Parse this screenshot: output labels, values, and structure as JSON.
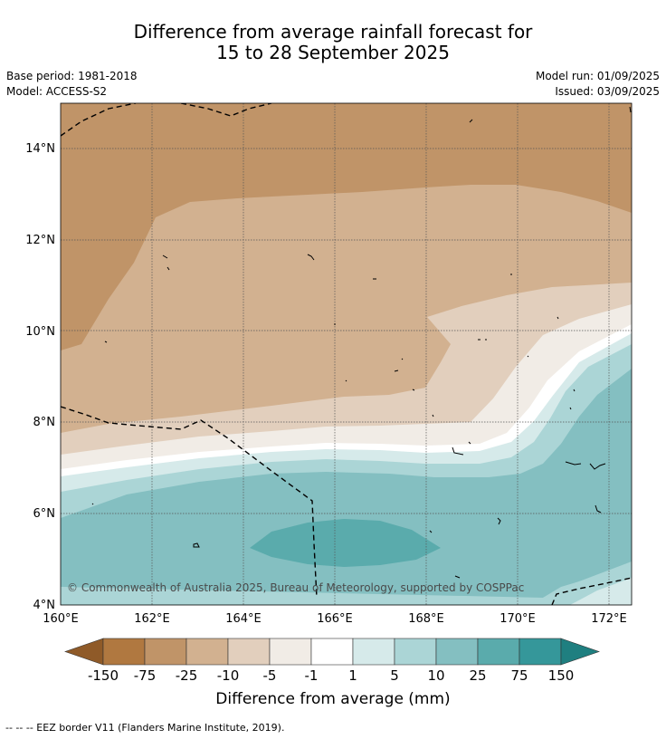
{
  "title_line1": "Difference from average rainfall forecast for",
  "title_line2": "15 to 28 September 2025",
  "base_period": "Base period: 1981-2018",
  "model": "Model: ACCESS-S2",
  "model_run": "Model run: 01/09/2025",
  "issued": "Issued: 03/09/2025",
  "copyright": "© Commonwealth of Australia 2025, Bureau of Meteorology, supported by COSPPac",
  "x_ticks": [
    "160°E",
    "162°E",
    "164°E",
    "166°E",
    "168°E",
    "170°E",
    "172°E"
  ],
  "y_ticks": [
    "4°N",
    "6°N",
    "8°N",
    "10°N",
    "12°N",
    "14°N"
  ],
  "colorbar": {
    "title": "Difference from average (mm)",
    "labels": [
      "-150",
      "-75",
      "-25",
      "-10",
      "-5",
      "-1",
      "1",
      "5",
      "10",
      "25",
      "75",
      "150"
    ],
    "colors": [
      "#8f5a28",
      "#b07840",
      "#c09468",
      "#d2b190",
      "#e2cfbd",
      "#f1ece6",
      "#ffffff",
      "#d6eaea",
      "#abd5d6",
      "#84bfc1",
      "#5aabac",
      "#35979a",
      "#1f7f80"
    ]
  },
  "footer": "--  --  -- EEZ border V11 (Flanders Marine Institute, 2019)."
}
